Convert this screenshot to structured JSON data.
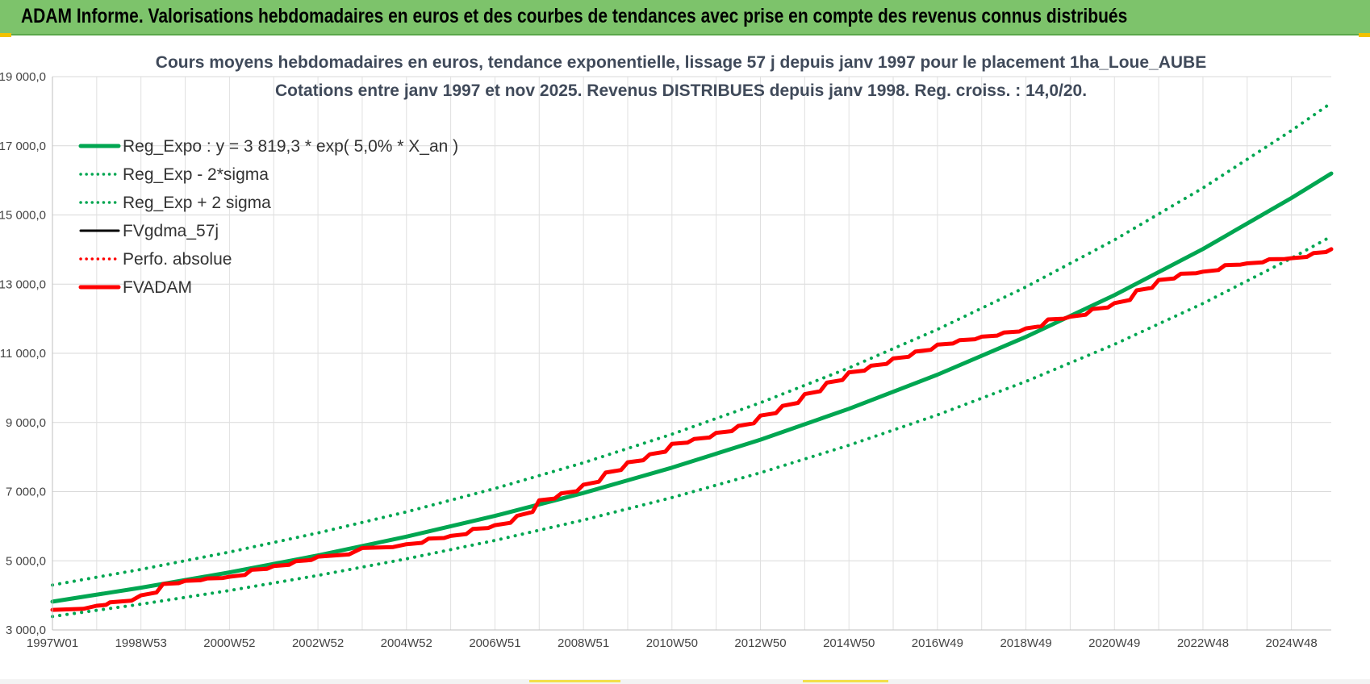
{
  "banner": {
    "title": "ADAM Informe. Valorisations hebdomadaires en euros et des courbes de tendances avec prise en compte des revenus connus distribués"
  },
  "colors": {
    "banner_bg": "#7dc36b",
    "reg_expo": "#00a651",
    "fvgdma": "#000000",
    "fvadam": "#ff0000",
    "perfo": "#ff0000"
  },
  "chart_data": {
    "type": "line",
    "title": "Cours moyens  hebdomadaires en euros, tendance exponentielle, lissage 57 j depuis janv 1997 pour le placement 1ha_Loue_AUBE",
    "subtitle": "Cotations entre janv 1997 et nov 2025. Revenus  DISTRIBUES depuis janv 1998.  Reg. croiss. : 14,0/20.",
    "xlabel": "",
    "ylabel": "",
    "ylim": [
      3000,
      19000
    ],
    "xlim": [
      1997.0,
      2025.9
    ],
    "grid": true,
    "legend_position": "top-left",
    "y_ticks": [
      "3 000,0",
      "5 000,0",
      "7 000,0",
      "9 000,0",
      "11 000,0",
      "13 000,0",
      "15 000,0",
      "17 000,0",
      "19 000,0"
    ],
    "y_tick_values": [
      3000,
      5000,
      7000,
      9000,
      11000,
      13000,
      15000,
      17000,
      19000
    ],
    "x_ticks": [
      "1997W01",
      "1998W53",
      "2000W52",
      "2002W52",
      "2004W52",
      "2006W51",
      "2008W51",
      "2010W50",
      "2012W50",
      "2014W50",
      "2016W49",
      "2018W49",
      "2020W49",
      "2022W48",
      "2024W48"
    ],
    "x_tick_values": [
      1997.0,
      1999.0,
      2001.0,
      2003.0,
      2005.0,
      2007.0,
      2009.0,
      2011.0,
      2013.0,
      2015.0,
      2017.0,
      2019.0,
      2021.0,
      2023.0,
      2025.0
    ],
    "series": [
      {
        "name": "Reg_Expo : y = 3 819,3 * exp( 5,0% *  X_an )",
        "style": "solid-thick",
        "color": "#00a651",
        "x": [
          1997.0,
          1999.0,
          2001.0,
          2003.0,
          2005.0,
          2007.0,
          2009.0,
          2011.0,
          2013.0,
          2015.0,
          2017.0,
          2019.0,
          2021.0,
          2023.0,
          2025.0,
          2025.9
        ],
        "y": [
          3819,
          4221,
          4665,
          5156,
          5698,
          6297,
          6960,
          7692,
          8501,
          9395,
          10383,
          11475,
          12682,
          14016,
          15490,
          16200
        ]
      },
      {
        "name": "Reg_Exp - 2*sigma",
        "style": "dotted",
        "color": "#00a651",
        "x": [
          1997.0,
          1999.0,
          2001.0,
          2003.0,
          2005.0,
          2007.0,
          2009.0,
          2011.0,
          2013.0,
          2015.0,
          2017.0,
          2019.0,
          2021.0,
          2023.0,
          2025.0,
          2025.9
        ],
        "y": [
          3390,
          3747,
          4141,
          4576,
          5058,
          5590,
          6178,
          6828,
          7546,
          8340,
          9217,
          10186,
          11258,
          12442,
          13750,
          14380
        ]
      },
      {
        "name": "Reg_Exp + 2 sigma",
        "style": "dotted",
        "color": "#00a651",
        "x": [
          1997.0,
          1999.0,
          2001.0,
          2003.0,
          2005.0,
          2007.0,
          2009.0,
          2011.0,
          2013.0,
          2015.0,
          2017.0,
          2019.0,
          2021.0,
          2023.0,
          2025.0,
          2025.9
        ],
        "y": [
          4300,
          4752,
          5252,
          5805,
          6415,
          7090,
          7836,
          8660,
          9571,
          10578,
          11690,
          12920,
          14279,
          15781,
          17440,
          18240
        ]
      },
      {
        "name": "FVgdma_57j",
        "style": "solid",
        "color": "#000000",
        "x": [
          1997.0,
          1998.0,
          1998.3,
          1999.0,
          1999.5,
          2000.0,
          2000.5,
          2001.0,
          2001.5,
          2002.0,
          2002.5,
          2003.0,
          2004.0,
          2005.0,
          2005.5,
          2006.0,
          2006.5,
          2007.0,
          2007.5,
          2008.0,
          2008.5,
          2009.0,
          2009.5,
          2010.0,
          2010.5,
          2011.0,
          2011.5,
          2012.0,
          2012.5,
          2013.0,
          2013.5,
          2014.0,
          2014.5,
          2015.0,
          2015.5,
          2016.0,
          2016.5,
          2017.0,
          2017.5,
          2018.0,
          2018.5,
          2019.0,
          2019.5,
          2020.0,
          2020.5,
          2021.0,
          2021.5,
          2022.0,
          2022.5,
          2023.0,
          2023.5,
          2024.0,
          2024.5,
          2025.0,
          2025.5,
          2025.9
        ],
        "y": [
          3580,
          3700,
          3800,
          4000,
          4330,
          4420,
          4490,
          4540,
          4740,
          4850,
          4990,
          5120,
          5370,
          5480,
          5640,
          5720,
          5920,
          6030,
          6300,
          6750,
          6950,
          7200,
          7550,
          7850,
          8080,
          8380,
          8520,
          8700,
          8900,
          9200,
          9480,
          9820,
          10150,
          10450,
          10640,
          10850,
          11050,
          11250,
          11380,
          11480,
          11600,
          11720,
          11980,
          12060,
          12280,
          12450,
          12820,
          13120,
          13300,
          13360,
          13550,
          13600,
          13720,
          13750,
          13900,
          14010
        ]
      },
      {
        "name": "Perfo. absolue",
        "style": "dotted",
        "color": "#ff0000",
        "x": [
          1997.0,
          1998.0,
          1998.3,
          1999.0,
          1999.5,
          2000.0,
          2000.5,
          2001.0,
          2001.5,
          2002.0,
          2002.5,
          2003.0,
          2004.0,
          2005.0,
          2005.5,
          2006.0,
          2006.5,
          2007.0,
          2007.5,
          2008.0,
          2008.5,
          2009.0,
          2009.5,
          2010.0,
          2010.5,
          2011.0,
          2011.5,
          2012.0,
          2012.5,
          2013.0,
          2013.5,
          2014.0,
          2014.5,
          2015.0,
          2015.5,
          2016.0,
          2016.5,
          2017.0,
          2017.5,
          2018.0,
          2018.5,
          2019.0,
          2019.5,
          2020.0,
          2020.5,
          2021.0,
          2021.5,
          2022.0,
          2022.5,
          2023.0,
          2023.5,
          2024.0,
          2024.5,
          2025.0,
          2025.5,
          2025.9
        ],
        "y": [
          3580,
          3700,
          3800,
          4000,
          4330,
          4420,
          4490,
          4540,
          4740,
          4850,
          4990,
          5120,
          5370,
          5480,
          5640,
          5720,
          5920,
          6030,
          6300,
          6750,
          6950,
          7200,
          7550,
          7850,
          8080,
          8380,
          8520,
          8700,
          8900,
          9200,
          9480,
          9820,
          10150,
          10450,
          10640,
          10850,
          11050,
          11250,
          11380,
          11480,
          11600,
          11720,
          11980,
          12060,
          12280,
          12450,
          12820,
          13120,
          13300,
          13360,
          13550,
          13600,
          13720,
          13750,
          13900,
          14010
        ]
      },
      {
        "name": "FVADAM",
        "style": "solid-thick",
        "color": "#ff0000",
        "x": [
          1997.0,
          1998.0,
          1998.3,
          1999.0,
          1999.5,
          2000.0,
          2000.5,
          2001.0,
          2001.5,
          2002.0,
          2002.5,
          2003.0,
          2004.0,
          2005.0,
          2005.5,
          2006.0,
          2006.5,
          2007.0,
          2007.5,
          2008.0,
          2008.5,
          2009.0,
          2009.5,
          2010.0,
          2010.5,
          2011.0,
          2011.5,
          2012.0,
          2012.5,
          2013.0,
          2013.5,
          2014.0,
          2014.5,
          2015.0,
          2015.5,
          2016.0,
          2016.5,
          2017.0,
          2017.5,
          2018.0,
          2018.5,
          2019.0,
          2019.5,
          2020.0,
          2020.5,
          2021.0,
          2021.5,
          2022.0,
          2022.5,
          2023.0,
          2023.5,
          2024.0,
          2024.5,
          2025.0,
          2025.5,
          2025.9
        ],
        "y": [
          3580,
          3700,
          3800,
          4000,
          4330,
          4420,
          4490,
          4540,
          4740,
          4850,
          4990,
          5120,
          5370,
          5480,
          5640,
          5720,
          5920,
          6030,
          6300,
          6750,
          6950,
          7200,
          7550,
          7850,
          8080,
          8380,
          8520,
          8700,
          8900,
          9200,
          9480,
          9820,
          10150,
          10450,
          10640,
          10850,
          11050,
          11250,
          11380,
          11480,
          11600,
          11720,
          11980,
          12060,
          12280,
          12450,
          12820,
          13120,
          13300,
          13360,
          13550,
          13600,
          13720,
          13750,
          13900,
          14010
        ]
      }
    ]
  }
}
